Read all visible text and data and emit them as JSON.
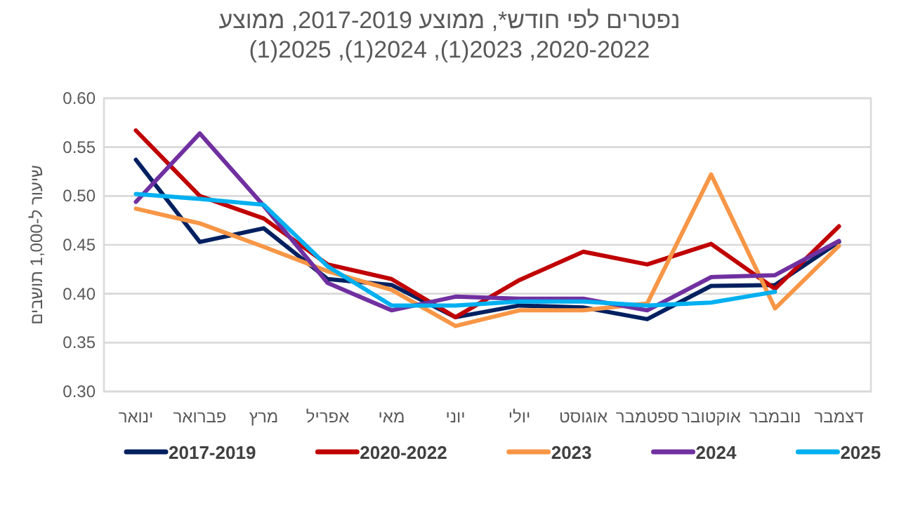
{
  "chart_data": {
    "type": "line",
    "title": "נפטרים לפי חודש*, ממוצע 2017-2019, ממוצע 2020-2022, 2023(1), 2024(1), 2025(1)",
    "ylabel": "שיעור ל-1,000 תושבים",
    "categories": [
      "ינואר",
      "פברואר",
      "מרץ",
      "אפריל",
      "מאי",
      "יוני",
      "יולי",
      "אוגוסט",
      "ספטמבר",
      "אוקטובר",
      "נובמבר",
      "דצמבר"
    ],
    "series": [
      {
        "name": "2017-2019",
        "color": "#002060",
        "values": [
          0.537,
          0.453,
          0.467,
          0.415,
          0.409,
          0.376,
          0.388,
          0.386,
          0.374,
          0.408,
          0.409,
          0.453
        ]
      },
      {
        "name": "2020-2022",
        "color": "#c00000",
        "values": [
          0.567,
          0.5,
          0.477,
          0.43,
          0.415,
          0.376,
          0.414,
          0.443,
          0.43,
          0.451,
          0.405,
          0.469
        ]
      },
      {
        "name": "2023",
        "color": "#f79646",
        "values": [
          0.487,
          0.472,
          0.448,
          0.423,
          0.404,
          0.367,
          0.383,
          0.383,
          0.39,
          0.522,
          0.385,
          0.449
        ]
      },
      {
        "name": "2024",
        "color": "#7030a0",
        "values": [
          0.494,
          0.564,
          0.49,
          0.411,
          0.383,
          0.397,
          0.395,
          0.395,
          0.383,
          0.417,
          0.419,
          0.454
        ]
      },
      {
        "name": "2025",
        "color": "#00b0f0",
        "values": [
          0.502,
          0.497,
          0.491,
          0.428,
          0.388,
          0.388,
          0.392,
          0.392,
          0.388,
          0.391,
          0.402,
          null
        ]
      }
    ],
    "ylim": [
      0.3,
      0.6
    ],
    "yticks": [
      {
        "value": 0.3,
        "label": "0.30"
      },
      {
        "value": 0.35,
        "label": "0.35"
      },
      {
        "value": 0.4,
        "label": "0.40"
      },
      {
        "value": 0.45,
        "label": "0.45"
      },
      {
        "value": 0.5,
        "label": "0.50"
      },
      {
        "value": 0.55,
        "label": "0.55"
      },
      {
        "value": 0.6,
        "label": "0.60"
      }
    ],
    "grid": "y",
    "legend": "bottom",
    "marker": "none",
    "line_style": "solid"
  }
}
